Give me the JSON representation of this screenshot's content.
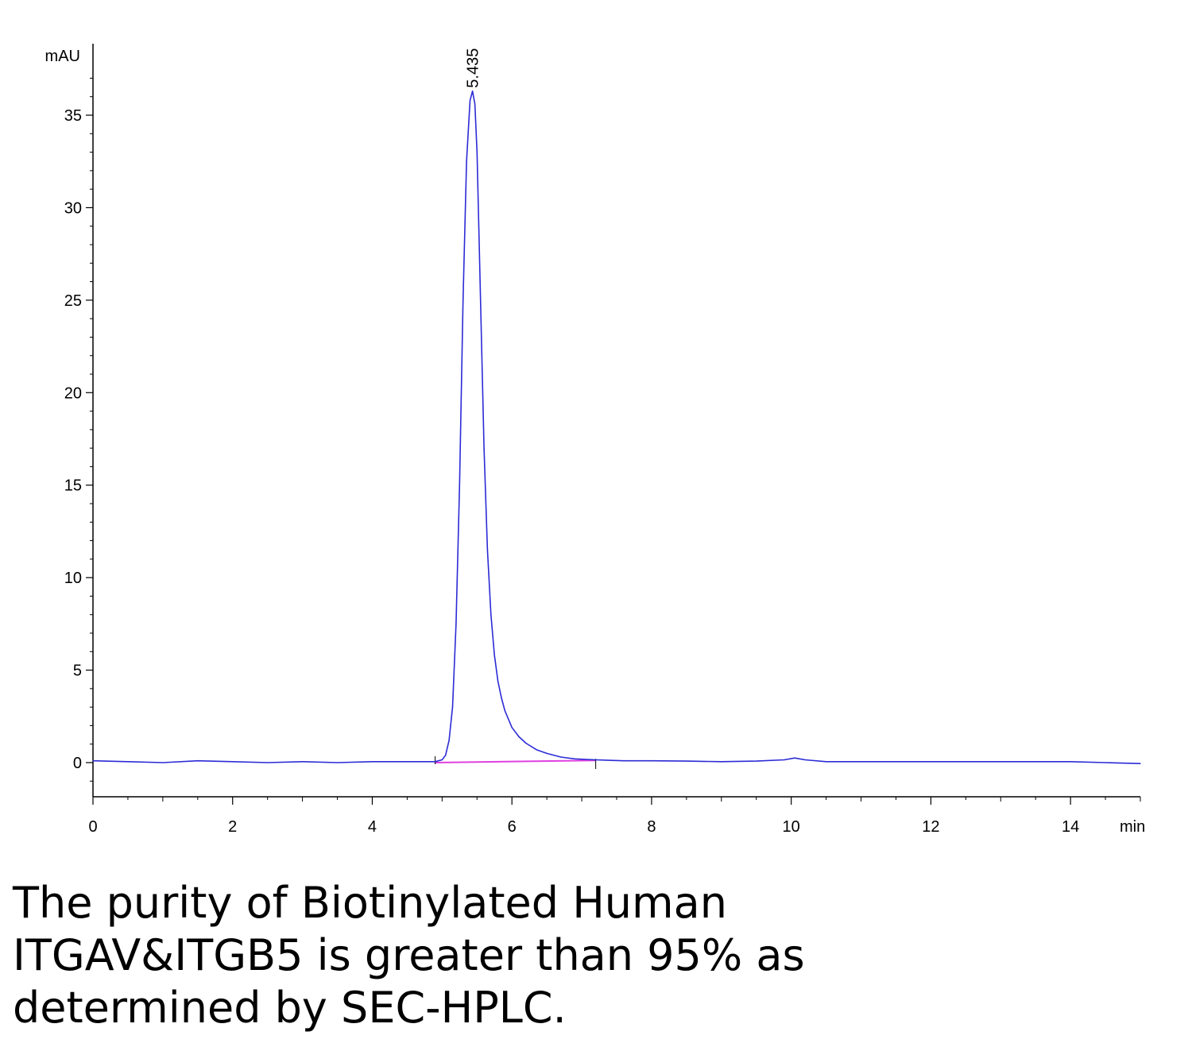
{
  "chart_data": {
    "type": "line",
    "title": "",
    "xlabel": "min",
    "ylabel": "mAU",
    "xlim": [
      0,
      15
    ],
    "ylim": [
      -2,
      38
    ],
    "x_ticks": [
      0,
      2,
      4,
      6,
      8,
      10,
      12,
      14
    ],
    "y_ticks": [
      0,
      5,
      10,
      15,
      20,
      25,
      30,
      35
    ],
    "grid": false,
    "legend": "none",
    "series": [
      {
        "color": "#2b2bd6",
        "x": [
          0,
          0.5,
          1.0,
          1.5,
          2.0,
          2.5,
          3.0,
          3.5,
          4.0,
          4.5,
          4.9,
          5.0,
          5.05,
          5.1,
          5.15,
          5.2,
          5.25,
          5.3,
          5.35,
          5.4,
          5.435,
          5.47,
          5.5,
          5.55,
          5.6,
          5.65,
          5.7,
          5.75,
          5.8,
          5.85,
          5.9,
          6.0,
          6.1,
          6.2,
          6.35,
          6.5,
          6.7,
          6.9,
          7.2,
          7.6,
          8.0,
          8.5,
          9.0,
          9.5,
          9.9,
          10.05,
          10.2,
          10.5,
          11.0,
          12.0,
          13.0,
          14.0,
          14.5,
          15.0
        ],
        "y": [
          0.1,
          0.05,
          0.0,
          0.1,
          0.05,
          0.0,
          0.05,
          0.0,
          0.05,
          0.05,
          0.05,
          0.15,
          0.4,
          1.2,
          3.0,
          7.5,
          15.0,
          25.0,
          32.5,
          35.8,
          36.3,
          35.6,
          33.0,
          25.0,
          17.0,
          11.5,
          8.0,
          5.8,
          4.4,
          3.5,
          2.8,
          1.9,
          1.4,
          1.05,
          0.7,
          0.5,
          0.3,
          0.2,
          0.15,
          0.1,
          0.1,
          0.08,
          0.05,
          0.08,
          0.15,
          0.25,
          0.15,
          0.05,
          0.05,
          0.05,
          0.05,
          0.05,
          0.0,
          -0.05
        ]
      }
    ],
    "peaks": [
      {
        "label": "5.435",
        "x": 5.435,
        "y": 36.3
      }
    ],
    "baseline": {
      "color": "#e040e0",
      "x": [
        4.9,
        7.2
      ],
      "y": [
        0.0,
        0.12
      ]
    }
  },
  "caption": {
    "lines": [
      "The purity of Biotinylated Human",
      "ITGAV&ITGB5 is greater than 95% as",
      "determined by SEC-HPLC."
    ]
  }
}
